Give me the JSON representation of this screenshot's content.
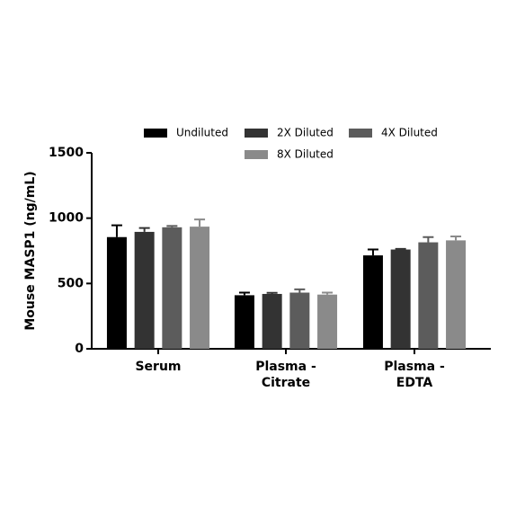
{
  "chart_data": {
    "type": "bar",
    "y_label": "Mouse MASP1 (ng/mL)",
    "categories": [
      "Serum",
      "Plasma - Citrate",
      "Plasma - EDTA"
    ],
    "series": [
      {
        "name": "Undiluted",
        "color": "#000000",
        "values": [
          855,
          410,
          715
        ],
        "errors": [
          90,
          20,
          45
        ]
      },
      {
        "name": "2X Diluted",
        "color": "#333333",
        "values": [
          895,
          420,
          760
        ],
        "errors": [
          30,
          8,
          5
        ]
      },
      {
        "name": "4X Diluted",
        "color": "#5c5c5c",
        "values": [
          930,
          430,
          815
        ],
        "errors": [
          10,
          25,
          40
        ]
      },
      {
        "name": "8X Diluted",
        "color": "#8a8a8a",
        "values": [
          935,
          415,
          830
        ],
        "errors": [
          55,
          15,
          30
        ]
      }
    ],
    "ylim": [
      0,
      1500
    ],
    "yticks": [
      0,
      500,
      1000,
      1500
    ]
  }
}
